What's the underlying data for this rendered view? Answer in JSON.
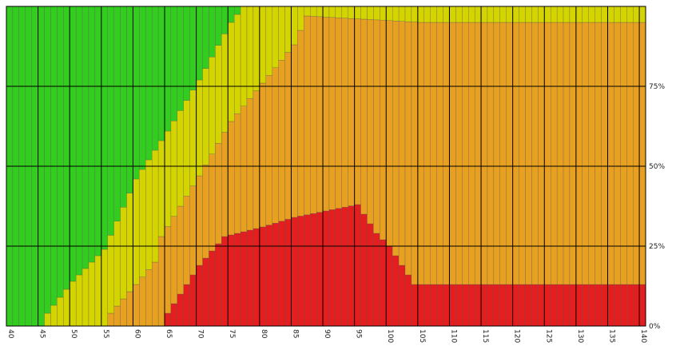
{
  "chart_data": {
    "type": "bar",
    "stacked": "percent",
    "x_start": 40,
    "x_end": 140,
    "x_step": 1,
    "x_tick_labels": [
      "40",
      "45",
      "50",
      "55",
      "60",
      "65",
      "70",
      "75",
      "80",
      "85",
      "90",
      "95",
      "100",
      "105",
      "110",
      "115",
      "120",
      "125",
      "130",
      "135",
      "140"
    ],
    "y_tick_labels": [
      "0%",
      "25%",
      "50%",
      "75%"
    ],
    "ylim": [
      0,
      100
    ],
    "grid": true,
    "y_axis_position": "right",
    "colors": {
      "red": "#e41e1e",
      "orange": "#e8a020",
      "yellow": "#d4d400",
      "green": "#32cd1e",
      "bar_border": "#555555",
      "gridline": "#000000"
    },
    "series_stack_order": [
      "red",
      "orange",
      "yellow",
      "green"
    ],
    "boundaries": {
      "red_top": [
        [
          40,
          0
        ],
        [
          64,
          0
        ],
        [
          65,
          4
        ],
        [
          70,
          19
        ],
        [
          74,
          28
        ],
        [
          80,
          31
        ],
        [
          85,
          34
        ],
        [
          90,
          36
        ],
        [
          95,
          38
        ],
        [
          98,
          29
        ],
        [
          100,
          25
        ],
        [
          104,
          13
        ],
        [
          140,
          13
        ]
      ],
      "orange_top": [
        [
          40,
          0
        ],
        [
          55,
          0
        ],
        [
          56,
          4
        ],
        [
          60,
          13
        ],
        [
          63,
          20
        ],
        [
          64,
          28
        ],
        [
          70,
          47
        ],
        [
          75,
          64
        ],
        [
          80,
          76
        ],
        [
          85,
          88
        ],
        [
          87,
          97
        ],
        [
          105,
          95
        ],
        [
          140,
          95
        ]
      ],
      "yellow_top": [
        [
          40,
          0
        ],
        [
          45,
          0
        ],
        [
          46,
          4
        ],
        [
          50,
          14
        ],
        [
          55,
          24
        ],
        [
          60,
          46
        ],
        [
          65,
          61
        ],
        [
          70,
          77
        ],
        [
          75,
          95
        ],
        [
          77,
          100
        ],
        [
          140,
          100
        ]
      ]
    }
  }
}
